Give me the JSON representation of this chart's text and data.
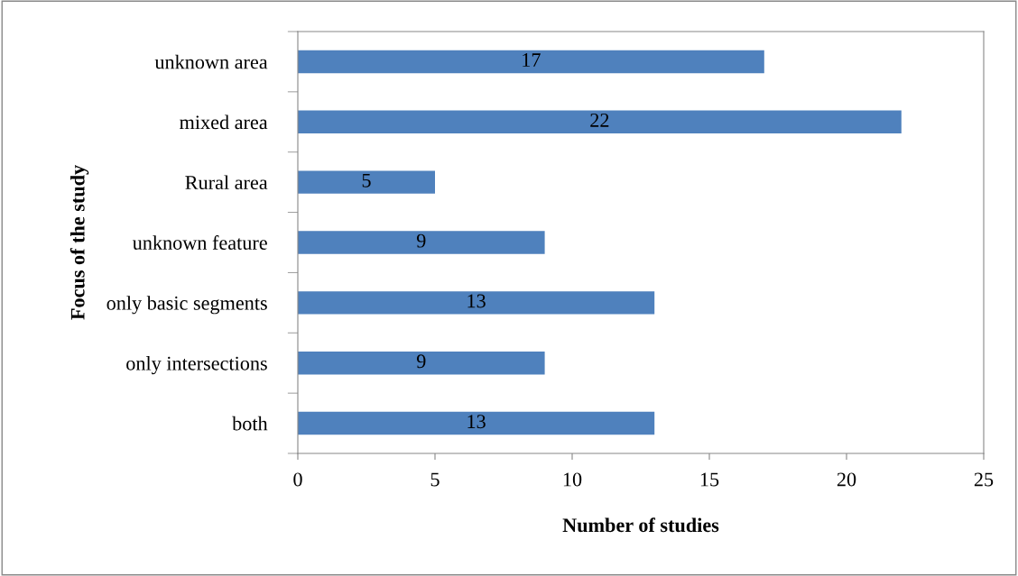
{
  "chart_data": {
    "type": "bar",
    "orientation": "horizontal",
    "xlabel": "Number of studies",
    "ylabel": "Focus of the study",
    "categories": [
      "unknown area",
      "mixed area",
      "Rural area",
      "unknown feature",
      "only basic segments",
      "only intersections",
      "both"
    ],
    "values": [
      17,
      22,
      5,
      9,
      13,
      9,
      13
    ],
    "color": "#4f81bd",
    "xlim": [
      0,
      25
    ],
    "xticks": [
      0,
      5,
      10,
      15,
      20,
      25
    ],
    "grid": false,
    "legend": false,
    "data_labels": true
  }
}
